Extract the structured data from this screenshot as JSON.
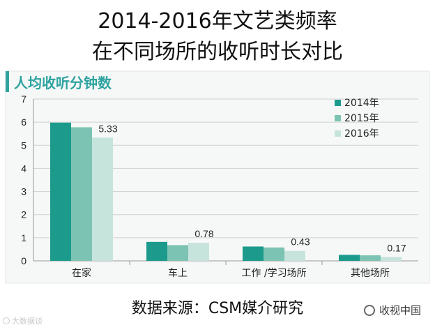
{
  "title_line1": "2014-2016年文艺类频率",
  "title_line2": "在不同场所的收听时长对比",
  "source": "数据来源：CSM媒介研究",
  "watermark_left": "大数据谈",
  "watermark_right": "收视中国",
  "colors": {
    "title_bar": "#2ea3a0",
    "s2014": "#1c9b8c",
    "s2015": "#7cc3b3",
    "s2016": "#c6e4dc",
    "grid": "#cfcfcf"
  },
  "chart_data": {
    "type": "bar",
    "title": "人均收听分钟数",
    "categories": [
      "在家",
      "车上",
      "工作 /学习场所",
      "其他场所"
    ],
    "series": [
      {
        "name": "2014年",
        "values": [
          5.98,
          0.82,
          0.62,
          0.26
        ]
      },
      {
        "name": "2015年",
        "values": [
          5.78,
          0.68,
          0.58,
          0.24
        ]
      },
      {
        "name": "2016年",
        "values": [
          5.33,
          0.78,
          0.43,
          0.17
        ]
      }
    ],
    "data_labels": [
      null,
      null,
      {
        "values": [
          "5.33",
          "0.78",
          "0.43",
          "0.17"
        ]
      }
    ],
    "ylim": [
      0,
      7
    ],
    "yticks": [
      0,
      1,
      2,
      3,
      4,
      5,
      6,
      7
    ],
    "grid": true,
    "legend_position": "top-right"
  }
}
